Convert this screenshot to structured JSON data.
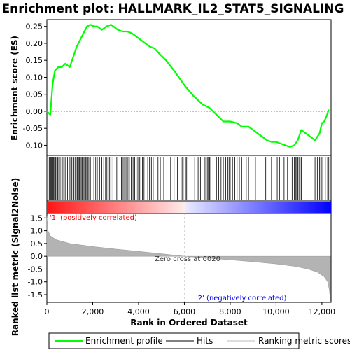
{
  "chart_data": {
    "type": "line",
    "title": "Enrichment plot: HALLMARK_IL2_STAT5_SIGNALING",
    "top_panel": {
      "ylabel": "Enrichment score (ES)",
      "ylim": [
        -0.13,
        0.27
      ],
      "yticks": [
        -0.1,
        -0.05,
        0.0,
        0.05,
        0.1,
        0.15,
        0.2,
        0.25
      ],
      "ytick_labels": [
        "-0.10",
        "-0.05",
        "0.00",
        "0.05",
        "0.10",
        "0.15",
        "0.20",
        "0.25"
      ],
      "series": [
        {
          "name": "Enrichment profile",
          "color": "#00ff00",
          "x": [
            0,
            150,
            250,
            350,
            500,
            650,
            800,
            1000,
            1150,
            1300,
            1450,
            1600,
            1750,
            1900,
            2050,
            2200,
            2400,
            2600,
            2800,
            2900,
            3100,
            3300,
            3500,
            3700,
            3900,
            4100,
            4300,
            4500,
            4700,
            4900,
            5200,
            5600,
            6020,
            6400,
            6800,
            7100,
            7400,
            7700,
            8000,
            8300,
            8500,
            8800,
            9000,
            9200,
            9400,
            9600,
            9800,
            10000,
            10200,
            10400,
            10600,
            10800,
            10950,
            11100,
            11300,
            11500,
            11700,
            11900,
            12000,
            12100,
            12200,
            12300
          ],
          "y": [
            0.0,
            -0.01,
            0.08,
            0.12,
            0.13,
            0.13,
            0.14,
            0.13,
            0.16,
            0.19,
            0.21,
            0.23,
            0.25,
            0.255,
            0.25,
            0.25,
            0.24,
            0.25,
            0.255,
            0.25,
            0.24,
            0.235,
            0.235,
            0.23,
            0.22,
            0.21,
            0.2,
            0.19,
            0.185,
            0.17,
            0.15,
            0.115,
            0.075,
            0.045,
            0.02,
            0.01,
            -0.01,
            -0.03,
            -0.03,
            -0.035,
            -0.045,
            -0.045,
            -0.055,
            -0.065,
            -0.075,
            -0.085,
            -0.09,
            -0.09,
            -0.095,
            -0.1,
            -0.105,
            -0.1,
            -0.085,
            -0.055,
            -0.065,
            -0.075,
            -0.085,
            -0.065,
            -0.035,
            -0.03,
            -0.015,
            0.005
          ]
        }
      ]
    },
    "hits_panel": {
      "hit_ranks": [
        100,
        130,
        160,
        190,
        220,
        250,
        280,
        310,
        350,
        380,
        430,
        470,
        520,
        580,
        650,
        700,
        760,
        820,
        900,
        980,
        1040,
        1090,
        1140,
        1180,
        1230,
        1280,
        1330,
        1380,
        1420,
        1460,
        1500,
        1540,
        1580,
        1620,
        1660,
        1700,
        1740,
        1780,
        1830,
        1900,
        1970,
        2050,
        2130,
        2200,
        2300,
        2400,
        2480,
        2560,
        2620,
        2680,
        2740,
        2800,
        2880,
        3050,
        3250,
        3300,
        3360,
        3420,
        3480,
        3540,
        3600,
        3680,
        3760,
        3830,
        3900,
        3970,
        4040,
        4100,
        4170,
        4240,
        4320,
        4400,
        4480,
        4560,
        4640,
        4720,
        4850,
        4950,
        5100,
        5400,
        5550,
        5700,
        5900,
        5950,
        6050,
        6100,
        6450,
        6600,
        6700,
        6900,
        7000,
        7050,
        7100,
        7150,
        7250,
        7400,
        7500,
        7600,
        7700,
        7800,
        7900,
        7950,
        8000,
        8100,
        8200,
        8300,
        8400,
        8500,
        8600,
        8700,
        8800,
        8900,
        9100,
        9300,
        9550,
        9800,
        10050,
        10150,
        10350,
        10500,
        10700,
        10800,
        10850,
        10900,
        10950,
        11000,
        11050,
        11100,
        11700,
        11800,
        11900,
        11950,
        12000,
        12050,
        12150,
        12250,
        12300
      ]
    },
    "bottom_panel": {
      "ylabel": "Ranked list metric (Signal2Noise)",
      "xlabel": "Rank in Ordered Dataset",
      "ylim": [
        -1.8,
        1.7
      ],
      "yticks": [
        -1.5,
        -1.0,
        -0.5,
        0.0,
        0.5,
        1.0,
        1.5
      ],
      "ytick_labels": [
        "-1.5",
        "-1.0",
        "-0.5",
        "0.0",
        "0.5",
        "1.0",
        "1.5"
      ],
      "xlim": [
        0,
        12400
      ],
      "xticks": [
        0,
        2000,
        4000,
        6000,
        8000,
        10000,
        12000
      ],
      "xtick_labels": [
        "0",
        "2,000",
        "4,000",
        "6,000",
        "8,000",
        "10,000",
        "12,000"
      ],
      "metric_x": [
        0,
        50,
        150,
        400,
        1000,
        2000,
        3000,
        4000,
        5000,
        6020,
        7000,
        8000,
        9000,
        10000,
        10800,
        11400,
        11800,
        12100,
        12250,
        12320,
        12360,
        12380
      ],
      "metric_y": [
        1.55,
        1.0,
        0.8,
        0.65,
        0.5,
        0.38,
        0.28,
        0.19,
        0.1,
        0.0,
        -0.07,
        -0.14,
        -0.21,
        -0.3,
        -0.39,
        -0.5,
        -0.62,
        -0.8,
        -1.0,
        -1.3,
        -1.6,
        -1.75
      ],
      "zero_cross_label": "Zero cross at 6020",
      "zero_cross_x": 6020,
      "positive_label": "'1' (positively correlated)",
      "negative_label": "'2' (negatively correlated)",
      "positive_color": "#ff0000",
      "negative_color": "#0000ff"
    },
    "legend": {
      "placement": "bottom",
      "items": [
        {
          "label": "Enrichment profile",
          "color": "#00ff00"
        },
        {
          "label": "Hits",
          "color": "#000000"
        },
        {
          "label": "Ranking metric scores",
          "color": "#bbbbbb"
        }
      ]
    }
  }
}
